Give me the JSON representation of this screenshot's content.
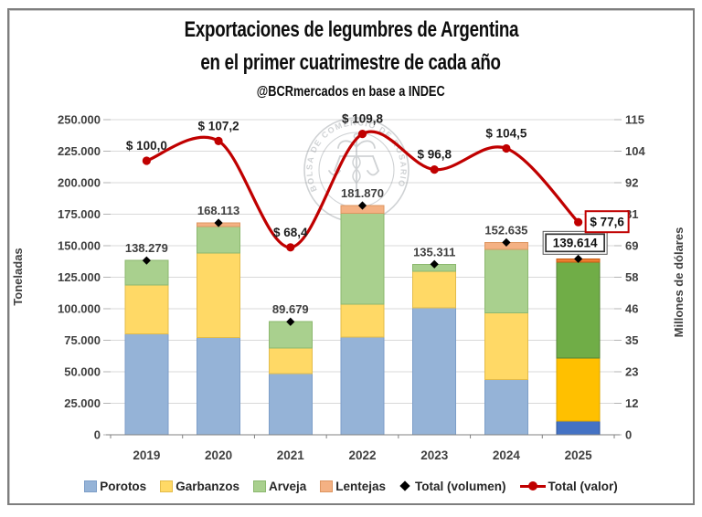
{
  "header": {
    "title_line1": "Exportaciones de legumbres de Argentina",
    "title_line2": "en el primer cuatrimestre de cada año",
    "subtitle": "@BCRmercados en base a INDEC"
  },
  "watermark": {
    "text": "BOLSA DE COMERCIO DE ROSARIO",
    "icon": "caduceus-scales-seal",
    "color": "#8a9096"
  },
  "chart_data": {
    "type": "bar",
    "stacked": true,
    "grid": true,
    "legend_position": "bottom",
    "categories": [
      "2019",
      "2020",
      "2021",
      "2022",
      "2023",
      "2024",
      "2025"
    ],
    "highlight_category": "2025",
    "series": [
      {
        "name": "Porotos",
        "color": "#95B3D7",
        "border": "#7D9EC8",
        "highlight_color": "#4472C4",
        "highlight_border": "#2F5597",
        "values": [
          80000,
          77000,
          48500,
          77500,
          100700,
          43700,
          11000
        ]
      },
      {
        "name": "Garbanzos",
        "color": "#FFD966",
        "border": "#E3BC4B",
        "highlight_color": "#FFC000",
        "highlight_border": "#D9A300",
        "values": [
          39000,
          67300,
          20300,
          26300,
          29000,
          52900,
          50000
        ]
      },
      {
        "name": "Arveja",
        "color": "#A9D08E",
        "border": "#8CB86F",
        "highlight_color": "#70AD47",
        "highlight_border": "#548235",
        "values": [
          19279,
          20913,
          20879,
          71970,
          5611,
          50535,
          76014
        ]
      },
      {
        "name": "Lentejas",
        "color": "#F4B183",
        "border": "#DD9661",
        "highlight_color": "#ED7D31",
        "highlight_border": "#C55A11",
        "values": [
          0,
          2900,
          0,
          6100,
          0,
          5500,
          2600
        ]
      }
    ],
    "totals_volume": {
      "name": "Total (volumen)",
      "marker": "diamond",
      "marker_color": "#000000",
      "values": [
        138279,
        168113,
        89679,
        181870,
        135311,
        152635,
        139614
      ],
      "labels": [
        "138.279",
        "168.113",
        "89.679",
        "181.870",
        "135.311",
        "152.635",
        "139.614"
      ],
      "boxed_index": 6,
      "box_color": "#333333"
    },
    "line_valor": {
      "name": "Total (valor)",
      "axis": "right",
      "color": "#C00000",
      "values": [
        100.0,
        107.2,
        68.4,
        109.8,
        96.8,
        104.5,
        77.6
      ],
      "labels": [
        "$ 100,0",
        "$ 107,2",
        "$ 68,4",
        "$ 109,8",
        "$ 96,8",
        "$ 104,5",
        "$ 77,6"
      ],
      "boxed_index": 6,
      "box_color": "#C00000"
    },
    "y_left": {
      "title": "Toneladas",
      "min": 0,
      "max": 250000,
      "ticks": [
        "0",
        "25.000",
        "50.000",
        "75.000",
        "100.000",
        "125.000",
        "150.000",
        "175.000",
        "200.000",
        "225.000",
        "250.000"
      ]
    },
    "y_right": {
      "title": "Millones de dólares",
      "min": 0,
      "max": 115,
      "ticks": [
        "0",
        "12",
        "23",
        "35",
        "46",
        "58",
        "69",
        "81",
        "92",
        "104",
        "115"
      ]
    }
  },
  "legend": {
    "items": [
      {
        "label": "Porotos",
        "swatch": "square",
        "color": "#95B3D7",
        "border": "#7D9EC8"
      },
      {
        "label": "Garbanzos",
        "swatch": "square",
        "color": "#FFD966",
        "border": "#E3BC4B"
      },
      {
        "label": "Arveja",
        "swatch": "square",
        "color": "#A9D08E",
        "border": "#8CB86F"
      },
      {
        "label": "Lentejas",
        "swatch": "square",
        "color": "#F4B183",
        "border": "#DD9661"
      },
      {
        "label": "Total (volumen)",
        "swatch": "diamond",
        "color": "#000000"
      },
      {
        "label": "Total (valor)",
        "swatch": "line-dot",
        "color": "#C00000"
      }
    ]
  }
}
